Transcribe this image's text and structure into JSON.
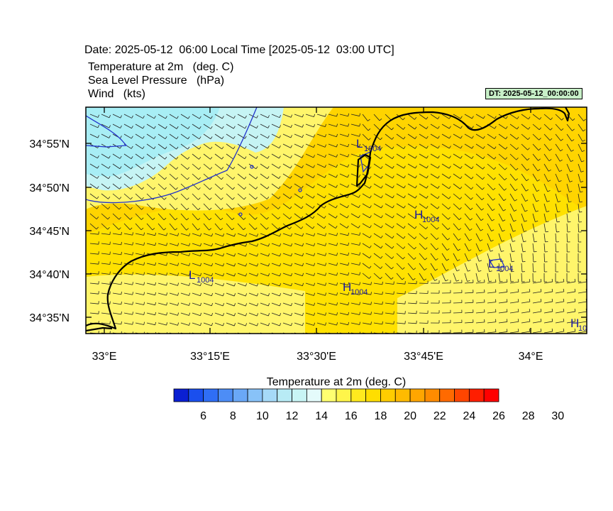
{
  "header": {
    "title": "Date: 2025-05-12  06:00 Local Time [2025-05-12  03:00 UTC]",
    "variables": [
      "Temperature at 2m   (deg. C)",
      "Sea Level Pressure   (hPa)",
      "Wind   (kts)"
    ],
    "dt_badge": "DT: 2025-05-12_00:00:00"
  },
  "map": {
    "lat_labels": [
      "34°55'N",
      "34°50'N",
      "34°45'N",
      "34°40'N",
      "34°35'N"
    ],
    "lon_labels": [
      "33°E",
      "33°15'E",
      "33°30'E",
      "33°45'E",
      "34°E"
    ],
    "pressure_labels": [
      {
        "letter": "L",
        "value": "1004"
      },
      {
        "letter": "H",
        "value": "1004"
      },
      {
        "letter": "L",
        "value": "1004"
      },
      {
        "letter": "H",
        "value": "1004"
      },
      {
        "letter": "L",
        "value": "1004"
      },
      {
        "letter": "H",
        "value": "10"
      }
    ],
    "colors": {
      "cool_fill": "#a8eef5",
      "cool_fill_2": "#c6f4f4",
      "light_yellow": "#fff56b",
      "yellow": "#ffe100",
      "gold": "#ffd400",
      "isobar": "#2233cc",
      "label": "#1a1aa0",
      "coast": "#000000"
    }
  },
  "colorbar": {
    "title": "Temperature at 2m  (deg. C)",
    "tick_labels": [
      "6",
      "8",
      "10",
      "12",
      "14",
      "16",
      "18",
      "20",
      "22",
      "24",
      "26",
      "28",
      "30"
    ],
    "colors": [
      "#0a1fd2",
      "#1a4fee",
      "#2f6ef5",
      "#4d8df6",
      "#6aa8f7",
      "#88c2f8",
      "#a6daf8",
      "#b8ebf5",
      "#c8f5f5",
      "#e4fbfb",
      "#ffff70",
      "#fff54a",
      "#ffea1e",
      "#ffde00",
      "#ffcd00",
      "#ffbb00",
      "#ffa600",
      "#ff8c00",
      "#ff6a00",
      "#ff4500",
      "#ff1e00",
      "#ff0000"
    ]
  }
}
